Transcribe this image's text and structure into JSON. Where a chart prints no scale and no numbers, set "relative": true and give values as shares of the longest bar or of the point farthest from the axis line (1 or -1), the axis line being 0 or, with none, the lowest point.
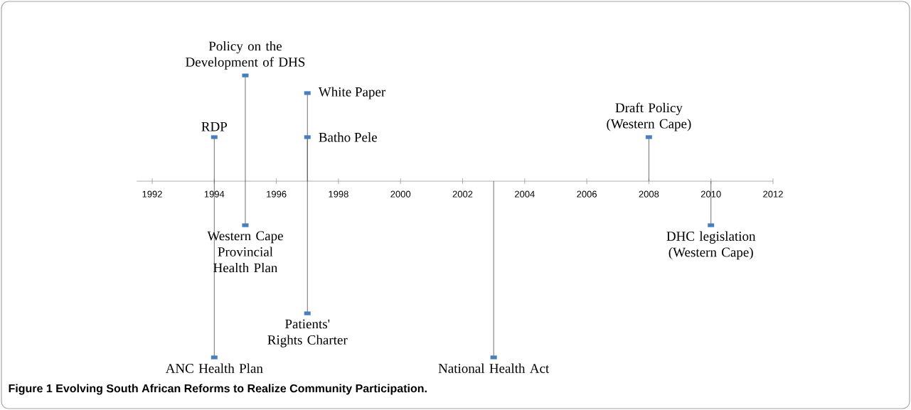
{
  "chart_data": {
    "type": "lollipop",
    "title": "Figure 1 Evolving South African Reforms to Realize Community Participation.",
    "relative": true,
    "color": "#4a7ebb",
    "series": [
      {
        "x": [
          1994,
          1995,
          1997,
          2008
        ],
        "values": [
          0.25,
          0.6,
          0.5,
          0.25
        ]
      },
      {
        "x": [
          1997
        ],
        "values": [
          0.25
        ]
      },
      {
        "x": [
          1994,
          1995,
          1997,
          2003,
          2010
        ],
        "values": [
          -1,
          -0.25,
          -0.75,
          -1,
          -0.25
        ]
      }
    ],
    "xlim": [
      1991.5,
      2012
    ],
    "xticks": [
      1992,
      1994,
      1996,
      1998,
      2000,
      2002,
      2004,
      2006,
      2008,
      2010,
      2012
    ],
    "annotations": [
      {
        "text": "RDP",
        "x": 1994,
        "y": 0.25
      },
      {
        "text": "ANC Health Plan",
        "x": 1994,
        "y": -1
      },
      {
        "text": "Policy on the Development of DHS",
        "x": 1995,
        "y": 0.6
      },
      {
        "text": "Western Cape Provincial Health Plan",
        "x": 1995,
        "y": -0.25
      },
      {
        "text": "White Paper",
        "x": 1997,
        "y": 0.5
      },
      {
        "text": "Batho Pele",
        "x": 1997,
        "y": 0.25
      },
      {
        "text": "Patients' Rights Charter",
        "x": 1997,
        "y": -0.75
      },
      {
        "text": "National Health Act",
        "x": 2003,
        "y": -1
      },
      {
        "text": "Draft Policy (Western Cape)",
        "x": 2008,
        "y": 0.25
      },
      {
        "text": "DHC legislation (Western Cape)",
        "x": 2010,
        "y": -0.25
      }
    ]
  }
}
